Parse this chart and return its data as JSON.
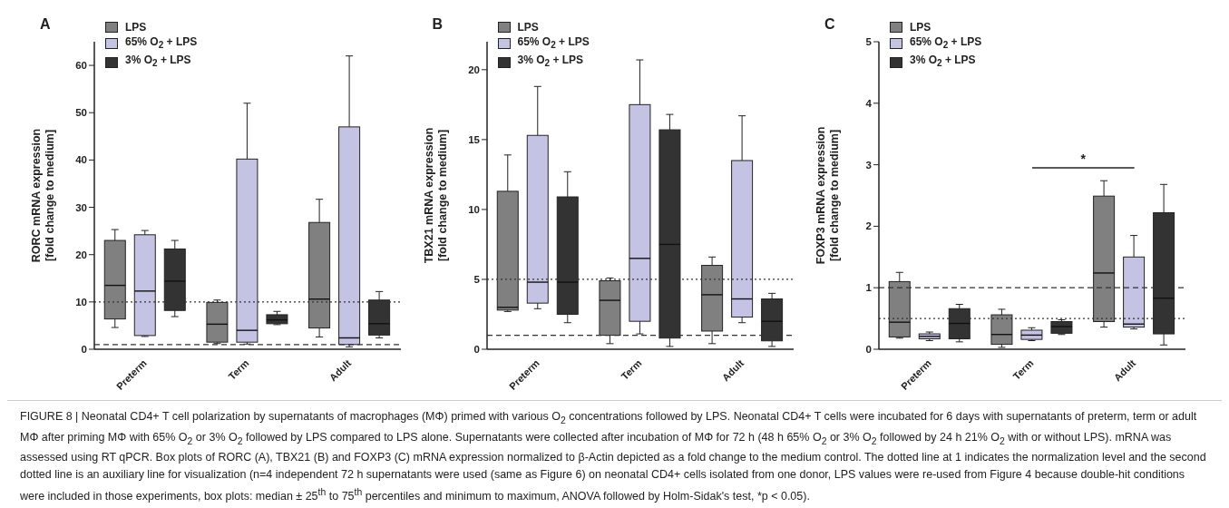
{
  "chart_data": [
    {
      "type": "box",
      "title": "A",
      "ylabel": "RORC mRNA expression\n[fold change to medium]",
      "categories": [
        "Preterm",
        "Term",
        "Adult"
      ],
      "ylim": [
        0,
        65
      ],
      "yticks": [
        0,
        10,
        20,
        30,
        40,
        50,
        60
      ],
      "grid": false,
      "legend": "top left",
      "series": [
        {
          "name": "LPS",
          "color": "#808080",
          "boxes": [
            {
              "low": 4.6,
              "q1": 6.4,
              "median": 13.5,
              "q3": 23,
              "high": 25.3
            },
            {
              "low": 1.2,
              "q1": 1.5,
              "median": 5.3,
              "q3": 9.9,
              "high": 10.4
            },
            {
              "low": 2.6,
              "q1": 4.5,
              "median": 10.6,
              "q3": 26.8,
              "high": 31.7
            }
          ]
        },
        {
          "name": "65% O$_{2}$ + LPS",
          "color": "#c5c3e3",
          "boxes": [
            {
              "low": 2.7,
              "q1": 2.9,
              "median": 12.3,
              "q3": 24.2,
              "high": 25.1
            },
            {
              "low": 1.1,
              "q1": 1.5,
              "median": 4,
              "q3": 40.2,
              "high": 52
            },
            {
              "low": 0.5,
              "q1": 1,
              "median": 2.4,
              "q3": 47,
              "high": 62
            }
          ]
        },
        {
          "name": "3% O$_{2}$ + LPS",
          "color": "#333333",
          "boxes": [
            {
              "low": 6.9,
              "q1": 8.2,
              "median": 14.4,
              "q3": 21.2,
              "high": 23
            },
            {
              "low": 5.2,
              "q1": 5.4,
              "median": 6.2,
              "q3": 7.3,
              "high": 8
            },
            {
              "low": 2.4,
              "q1": 3,
              "median": 5.4,
              "q3": 10.4,
              "high": 12.2
            }
          ]
        }
      ],
      "ref_lines": [
        {
          "axis": "y",
          "value": 10,
          "line_style": "dotted"
        },
        {
          "axis": "y",
          "value": 1,
          "line_style": "dashed"
        }
      ],
      "annotations": [
        "FIGURE 8 | Neonatal CD4+ T cell polarization by supernatants of macrophages (MΦ) primed with various O$_{2}$ concentrations followed by LPS. Neonatal CD4+ T cells were incubated for 6 days with supernatants of preterm, term or adult MΦ after priming MΦ with 65% O$_{2}$ or 3% O$_{2}$ followed by LPS compared to LPS alone. Supernatants were collected after incubation of MΦ for 72 h (48 h 65% O$_{2}$ or 3% O$_{2}$ followed by 24 h 21% O$_{2}$ with or without LPS). mRNA was assessed using RT qPCR. Box plots of RORC (A), TBX21 (B) and FOXP3 (C) mRNA expression normalized to β-Actin depicted as a fold change to the medium control. The dotted line at 1 indicates the normalization level and the second dotted line is an auxiliary line for visualization (n=4 independent 72 h supernatants were used (same as Figure 6) on neonatal CD4+ cells isolated from one donor, LPS values were re-used from Figure 4 because double-hit conditions were included in those experiments, box plots: median ± 25$^{th}$ to 75$^{th}$ percentiles and minimum to maximum, ANOVA followed by Holm-Sidak's test, *p < 0.05)."
      ]
    },
    {
      "type": "box",
      "title": "B",
      "ylabel": "TBX21 mRNA expression\n[fold change to medium]",
      "categories": [
        "Preterm",
        "Term",
        "Adult"
      ],
      "ylim": [
        0,
        22
      ],
      "yticks": [
        0,
        5,
        10,
        15,
        20
      ],
      "grid": false,
      "legend": "top left",
      "series": [
        {
          "name": "LPS",
          "color": "#808080",
          "boxes": [
            {
              "low": 2.7,
              "q1": 2.8,
              "median": 3,
              "q3": 11.3,
              "high": 13.9
            },
            {
              "low": 0.4,
              "q1": 1,
              "median": 3.5,
              "q3": 4.9,
              "high": 5.1
            },
            {
              "low": 0.4,
              "q1": 1.3,
              "median": 3.9,
              "q3": 6,
              "high": 6.6
            }
          ]
        },
        {
          "name": "65% O$_{2}$ + LPS",
          "color": "#c5c3e3",
          "boxes": [
            {
              "low": 2.9,
              "q1": 3.3,
              "median": 4.8,
              "q3": 15.3,
              "high": 18.8
            },
            {
              "low": 1.1,
              "q1": 2,
              "median": 6.5,
              "q3": 17.5,
              "high": 20.7
            },
            {
              "low": 1.9,
              "q1": 2.3,
              "median": 3.6,
              "q3": 13.5,
              "high": 16.7
            }
          ]
        },
        {
          "name": "3% O$_{2}$ + LPS",
          "color": "#333333",
          "boxes": [
            {
              "low": 1.9,
              "q1": 2.5,
              "median": 4.8,
              "q3": 10.9,
              "high": 12.7
            },
            {
              "low": 0.2,
              "q1": 0.8,
              "median": 7.5,
              "q3": 15.7,
              "high": 16.8
            },
            {
              "low": 0.2,
              "q1": 0.6,
              "median": 2,
              "q3": 3.6,
              "high": 4
            }
          ]
        }
      ],
      "ref_lines": [
        {
          "axis": "y",
          "value": 5,
          "line_style": "dotted"
        },
        {
          "axis": "y",
          "value": 1,
          "line_style": "dashed"
        }
      ]
    },
    {
      "type": "box",
      "title": "C",
      "ylabel": "FOXP3 mRNA expression\n[fold change to medium]",
      "categories": [
        "Preterm",
        "Term",
        "Adult"
      ],
      "ylim": [
        0,
        5
      ],
      "yticks": [
        0,
        1,
        2,
        3,
        4,
        5
      ],
      "grid": false,
      "legend": "top left",
      "series": [
        {
          "name": "LPS",
          "color": "#808080",
          "boxes": [
            {
              "low": 0.18,
              "q1": 0.2,
              "median": 0.44,
              "q3": 1.1,
              "high": 1.25
            },
            {
              "low": 0.03,
              "q1": 0.08,
              "median": 0.24,
              "q3": 0.56,
              "high": 0.65
            },
            {
              "low": 0.36,
              "q1": 0.45,
              "median": 1.24,
              "q3": 2.49,
              "high": 2.74
            }
          ]
        },
        {
          "name": "65% O$_{2}$ + LPS",
          "color": "#c5c3e3",
          "boxes": [
            {
              "low": 0.14,
              "q1": 0.17,
              "median": 0.21,
              "q3": 0.25,
              "high": 0.28
            },
            {
              "low": 0.14,
              "q1": 0.16,
              "median": 0.23,
              "q3": 0.31,
              "high": 0.35
            },
            {
              "low": 0.33,
              "q1": 0.36,
              "median": 0.41,
              "q3": 1.5,
              "high": 1.85
            }
          ]
        },
        {
          "name": "3% O$_{2}$ + LPS",
          "color": "#333333",
          "boxes": [
            {
              "low": 0.12,
              "q1": 0.17,
              "median": 0.42,
              "q3": 0.66,
              "high": 0.73
            },
            {
              "low": 0.24,
              "q1": 0.26,
              "median": 0.37,
              "q3": 0.45,
              "high": 0.48
            },
            {
              "low": 0.07,
              "q1": 0.25,
              "median": 0.83,
              "q3": 2.22,
              "high": 2.68
            }
          ]
        }
      ],
      "ref_lines": [
        {
          "axis": "y",
          "value": 1,
          "line_style": "dashed"
        },
        {
          "axis": "y",
          "value": 0.5,
          "line_style": "dotted"
        }
      ],
      "annotations": [
        "*"
      ]
    }
  ]
}
